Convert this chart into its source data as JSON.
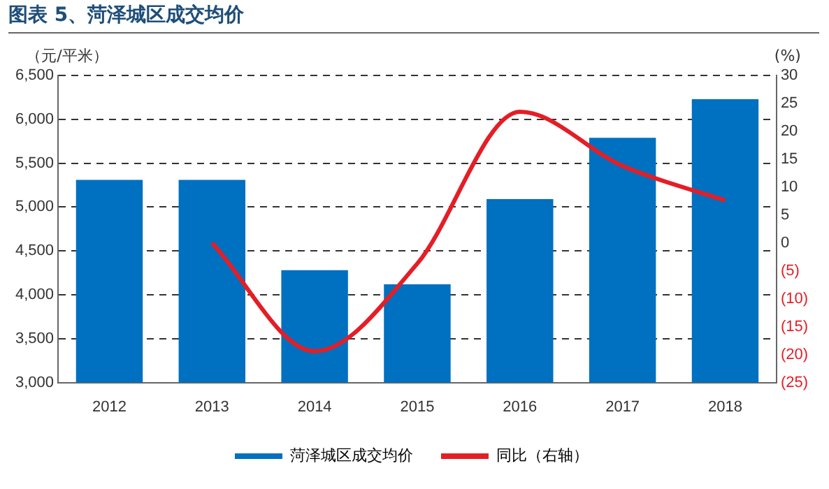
{
  "chart_data": {
    "type": "bar",
    "title": "图表 5、菏泽城区成交均价",
    "ylabel": "（元/平米）",
    "y2label": "(%)",
    "categories": [
      "2012",
      "2013",
      "2014",
      "2015",
      "2016",
      "2017",
      "2018"
    ],
    "series": [
      {
        "name": "菏泽城区成交均价",
        "color": "#0070c0",
        "values": [
          5310,
          5310,
          4280,
          4120,
          5090,
          5790,
          6230
        ]
      },
      {
        "name": "同比（右轴）",
        "type": "line",
        "axis": "y2",
        "color": "#e41e26",
        "values": [
          null,
          0,
          -19.4,
          -3.7,
          23.5,
          13.8,
          7.6
        ]
      }
    ],
    "ylim": [
      3000,
      6500
    ],
    "yticks": [
      {
        "value": 3000,
        "label": "3,000"
      },
      {
        "value": 3500,
        "label": "3,500"
      },
      {
        "value": 4000,
        "label": "4,000"
      },
      {
        "value": 4500,
        "label": "4,500"
      },
      {
        "value": 5000,
        "label": "5,000"
      },
      {
        "value": 5500,
        "label": "5,500"
      },
      {
        "value": 6000,
        "label": "6,000"
      },
      {
        "value": 6500,
        "label": "6,500"
      }
    ],
    "y2lim": [
      -25,
      30
    ],
    "y2ticks": [
      {
        "value": -25,
        "label": "(25)"
      },
      {
        "value": -20,
        "label": "(20)"
      },
      {
        "value": -15,
        "label": "(15)"
      },
      {
        "value": -10,
        "label": "(10)"
      },
      {
        "value": -5,
        "label": "(5)"
      },
      0,
      5,
      10,
      15,
      20,
      25,
      30
    ],
    "grid": "y",
    "legend": "bottom",
    "marker": "none"
  }
}
